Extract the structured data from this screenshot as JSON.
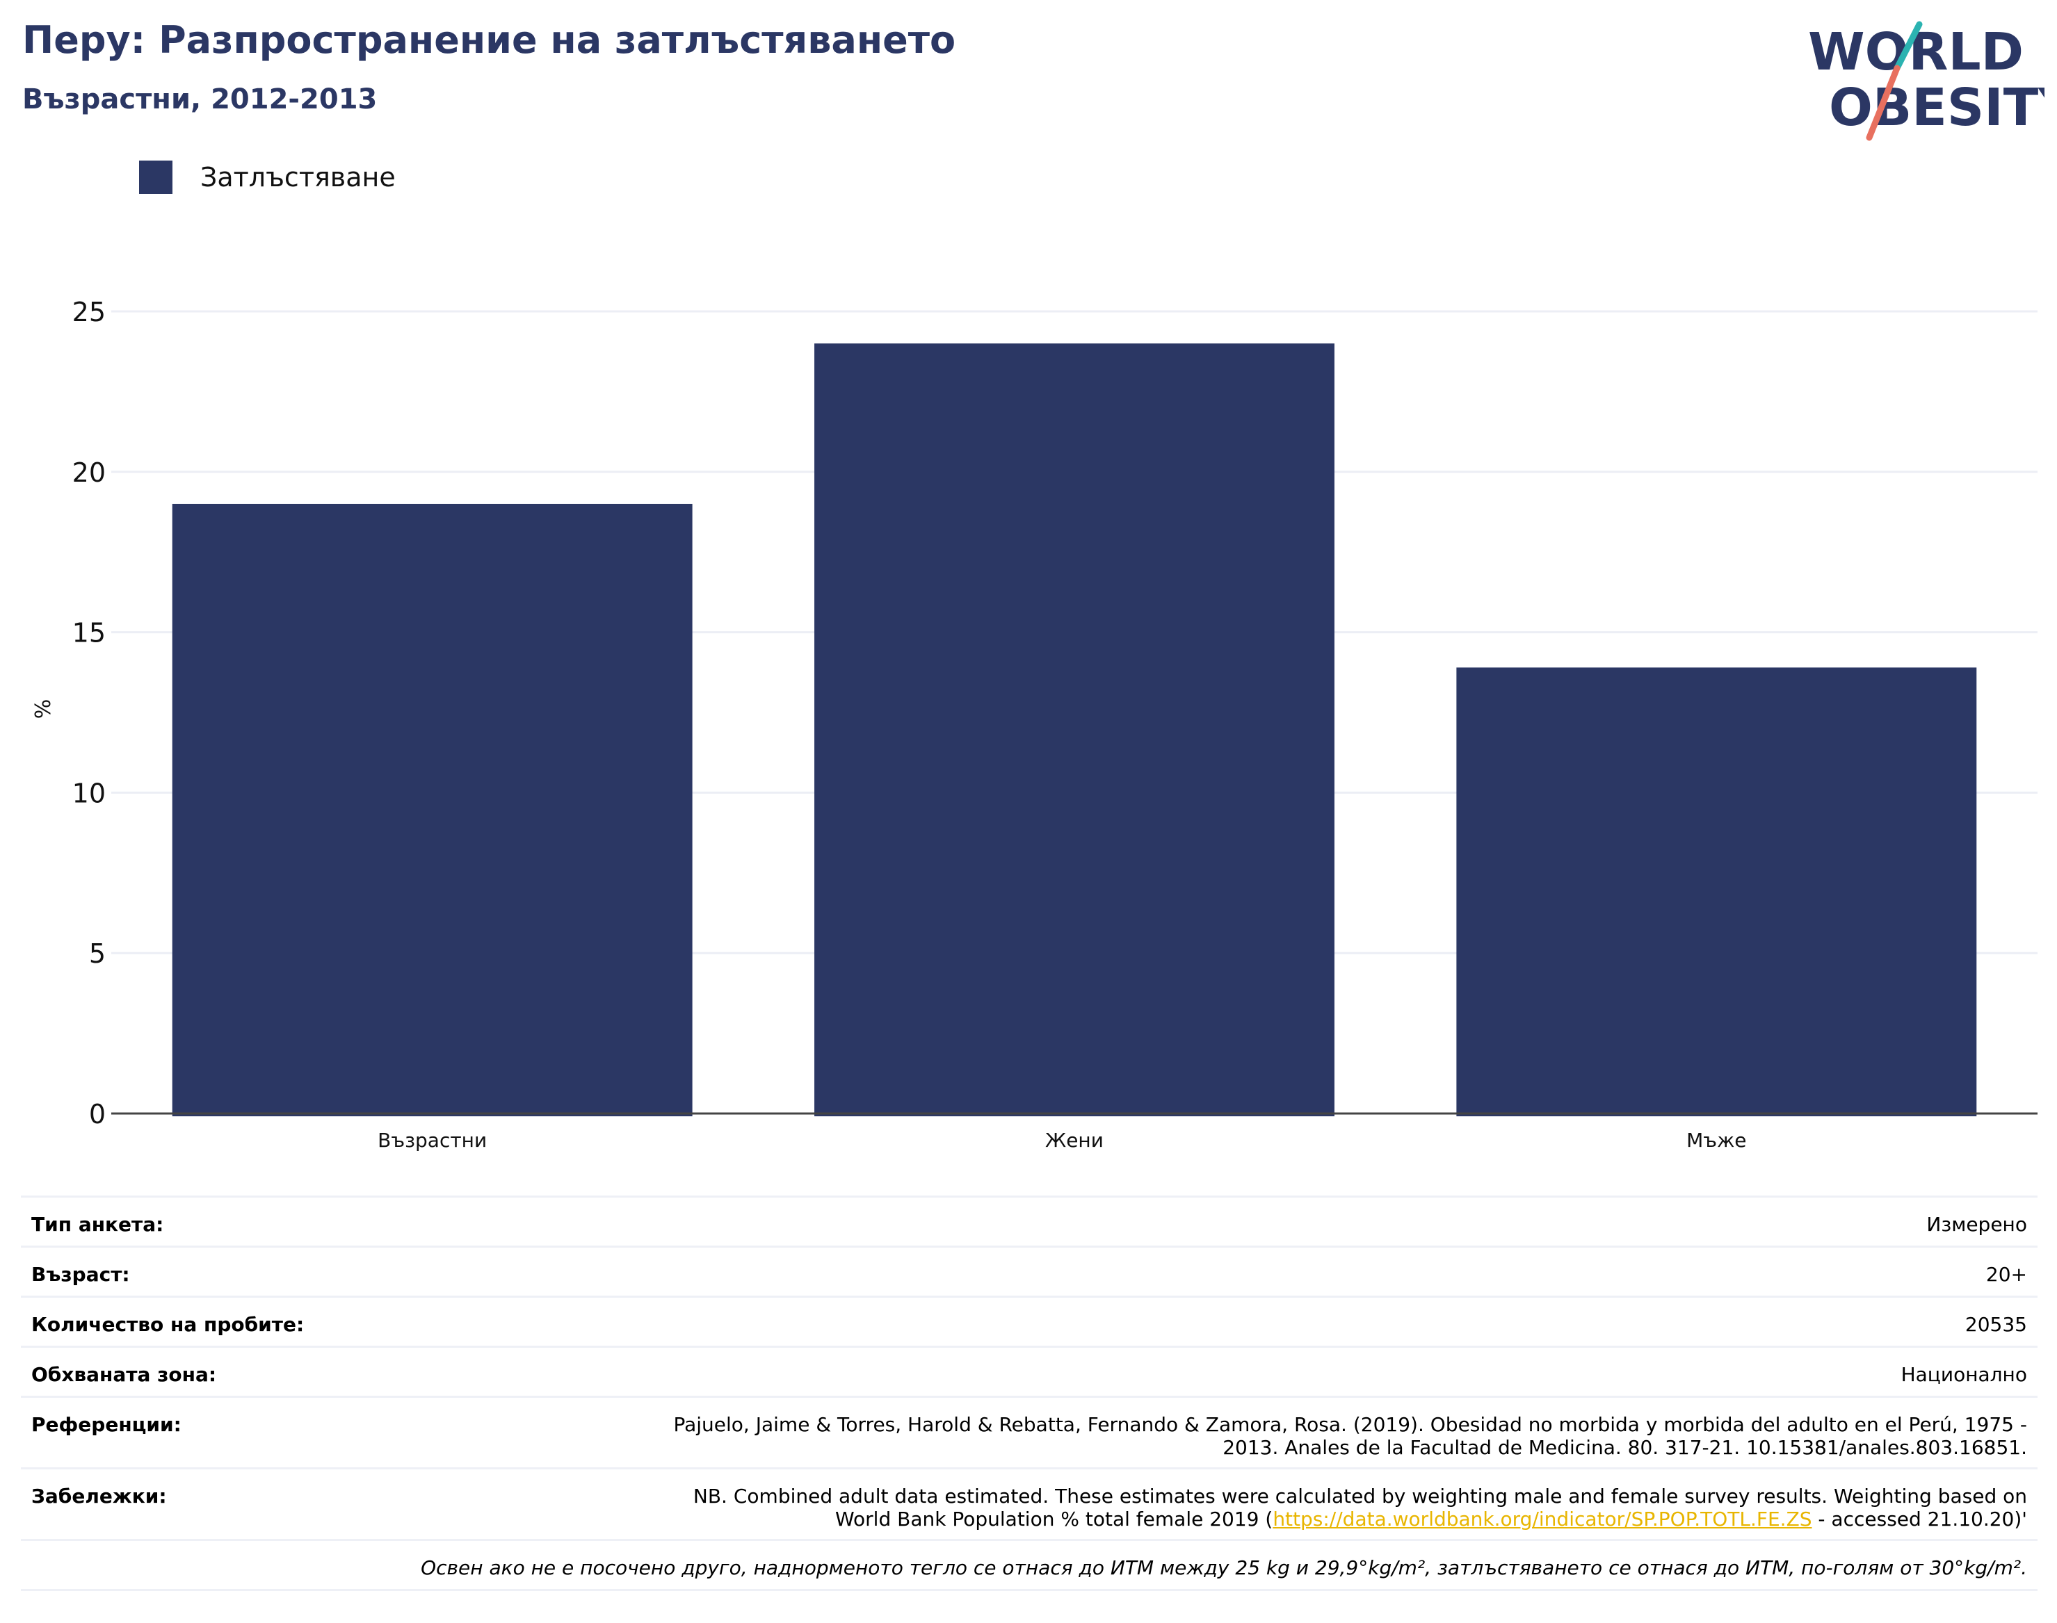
{
  "header": {
    "title": "Перу: Разпространение на затлъстяването",
    "subtitle": "Възрастни, 2012-2013"
  },
  "logo": {
    "line1": "WORLD",
    "line2": "OBESITY",
    "colors": {
      "text": "#2b3764",
      "slash_teal": "#2bb3b1",
      "slash_coral": "#e8705f"
    }
  },
  "chart_data": {
    "type": "bar",
    "categories": [
      "Възрастни",
      "Жени",
      "Мъже"
    ],
    "series": [
      {
        "name": "Затлъстяване",
        "values": [
          19.0,
          24.0,
          13.9
        ],
        "color": "#2b3764"
      }
    ],
    "title": "",
    "xlabel": "",
    "ylabel": "%",
    "ylim": [
      0,
      25
    ],
    "yticks": [
      0,
      5,
      10,
      15,
      20,
      25
    ],
    "grid": true,
    "legend_position": "top-left"
  },
  "info": {
    "survey_type": {
      "label": "Тип анкета:",
      "value": "Измерено"
    },
    "age": {
      "label": "Възраст:",
      "value": "20+"
    },
    "sample_size": {
      "label": "Количество на пробите:",
      "value": "20535"
    },
    "area": {
      "label": "Обхваната зона:",
      "value": "Национално"
    },
    "references": {
      "label": "Референции:",
      "line1": "Pajuelo, Jaime & Torres, Harold & Rebatta, Fernando & Zamora, Rosa. (2019). Obesidad no morbida y morbida del adulto en el Perú, 1975 -",
      "line2": "2013. Anales de la Facultad de Medicina. 80. 317-21. 10.15381/anales.803.16851."
    },
    "notes": {
      "label": "Забележки:",
      "line1": "NB. Combined adult data estimated. These estimates were calculated by weighting male and female survey results. Weighting based on",
      "line2_before": "World Bank Population % total female 2019 (",
      "link": "https://data.worldbank.org/indicator/SP.POP.TOTL.FE.ZS",
      "line2_after": " - accessed 21.10.20)'"
    },
    "footnote": "Освен ако не е посочено друго, наднорменото тегло се отнася до ИТМ между 25 kg и 29,9°kg/m², затлъстяването се отнася до ИТМ, по-голям от 30°kg/m²."
  }
}
